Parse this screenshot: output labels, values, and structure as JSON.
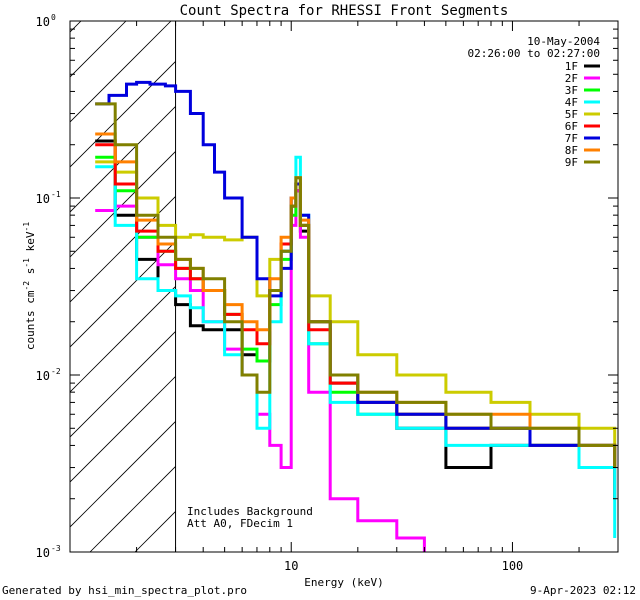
{
  "chart_data": {
    "type": "line",
    "title": "Count Spectra for RHESSI Front Segments",
    "xlabel": "Energy (keV)",
    "ylabel_parts": [
      "counts cm",
      "-2",
      " s",
      "-1",
      " keV",
      "-1"
    ],
    "xscale": "log",
    "yscale": "log",
    "xlim": [
      1.0,
      300.0
    ],
    "ylim": [
      0.001,
      1.0
    ],
    "x_ticks": [
      {
        "value": 10,
        "label": "10"
      },
      {
        "value": 100,
        "label": "100"
      }
    ],
    "y_ticks": [
      {
        "value": 1.0,
        "label": "10",
        "exp": "0"
      },
      {
        "value": 0.1,
        "label": "10",
        "exp": "-1"
      },
      {
        "value": 0.01,
        "label": "10",
        "exp": "-2"
      },
      {
        "value": 0.001,
        "label": "10",
        "exp": "-3"
      }
    ],
    "date": "10-May-2004",
    "time_range": "02:26:00 to 02:27:00",
    "annotation_lines": [
      "Includes Background",
      "Att A0, FDecim 1"
    ],
    "shaded_region": [
      1.0,
      3.0
    ],
    "legend_location": "top-right",
    "series": [
      {
        "name": "1F",
        "color": "#000000",
        "points": [
          [
            1.3,
            0.21
          ],
          [
            1.6,
            0.08
          ],
          [
            2.0,
            0.045
          ],
          [
            2.5,
            0.03
          ],
          [
            3.0,
            0.025
          ],
          [
            3.5,
            0.019
          ],
          [
            4.0,
            0.018
          ],
          [
            5.0,
            0.018
          ],
          [
            6.0,
            0.013
          ],
          [
            7.0,
            0.012
          ],
          [
            8.0,
            0.03
          ],
          [
            9.0,
            0.05
          ],
          [
            10.0,
            0.09
          ],
          [
            10.5,
            0.11
          ],
          [
            11.0,
            0.065
          ],
          [
            12.0,
            0.02
          ],
          [
            15.0,
            0.009
          ],
          [
            20.0,
            0.007
          ],
          [
            30.0,
            0.005
          ],
          [
            50.0,
            0.003
          ],
          [
            80.0,
            0.004
          ],
          [
            120.0,
            0.004
          ],
          [
            200.0,
            0.003
          ],
          [
            290.0,
            0.002
          ]
        ]
      },
      {
        "name": "2F",
        "color": "#ff00ff",
        "points": [
          [
            1.3,
            0.085
          ],
          [
            1.6,
            0.09
          ],
          [
            2.0,
            0.06
          ],
          [
            2.5,
            0.042
          ],
          [
            3.0,
            0.035
          ],
          [
            3.5,
            0.03
          ],
          [
            4.0,
            0.02
          ],
          [
            5.0,
            0.014
          ],
          [
            6.0,
            0.01
          ],
          [
            7.0,
            0.006
          ],
          [
            8.0,
            0.004
          ],
          [
            9.0,
            0.003
          ],
          [
            10.0,
            0.07
          ],
          [
            10.5,
            0.11
          ],
          [
            11.0,
            0.06
          ],
          [
            12.0,
            0.008
          ],
          [
            15.0,
            0.002
          ],
          [
            20.0,
            0.0015
          ],
          [
            30.0,
            0.0012
          ],
          [
            40.0,
            0.001
          ]
        ]
      },
      {
        "name": "3F",
        "color": "#00ff00",
        "points": [
          [
            1.3,
            0.17
          ],
          [
            1.6,
            0.11
          ],
          [
            2.0,
            0.06
          ],
          [
            2.5,
            0.05
          ],
          [
            3.0,
            0.04
          ],
          [
            3.5,
            0.035
          ],
          [
            4.0,
            0.03
          ],
          [
            5.0,
            0.022
          ],
          [
            6.0,
            0.014
          ],
          [
            7.0,
            0.012
          ],
          [
            8.0,
            0.025
          ],
          [
            9.0,
            0.045
          ],
          [
            10.0,
            0.08
          ],
          [
            10.5,
            0.12
          ],
          [
            11.0,
            0.07
          ],
          [
            12.0,
            0.015
          ],
          [
            15.0,
            0.008
          ],
          [
            20.0,
            0.006
          ],
          [
            30.0,
            0.006
          ],
          [
            50.0,
            0.005
          ],
          [
            80.0,
            0.005
          ],
          [
            120.0,
            0.004
          ],
          [
            200.0,
            0.004
          ],
          [
            290.0,
            0.003
          ]
        ]
      },
      {
        "name": "4F",
        "color": "#00ffff",
        "points": [
          [
            1.3,
            0.15
          ],
          [
            1.6,
            0.07
          ],
          [
            2.0,
            0.035
          ],
          [
            2.5,
            0.03
          ],
          [
            3.0,
            0.028
          ],
          [
            3.5,
            0.024
          ],
          [
            4.0,
            0.02
          ],
          [
            5.0,
            0.013
          ],
          [
            6.0,
            0.01
          ],
          [
            7.0,
            0.005
          ],
          [
            8.0,
            0.02
          ],
          [
            9.0,
            0.05
          ],
          [
            10.0,
            0.09
          ],
          [
            10.5,
            0.17
          ],
          [
            11.0,
            0.08
          ],
          [
            12.0,
            0.015
          ],
          [
            15.0,
            0.007
          ],
          [
            20.0,
            0.006
          ],
          [
            30.0,
            0.005
          ],
          [
            50.0,
            0.004
          ],
          [
            80.0,
            0.004
          ],
          [
            120.0,
            0.004
          ],
          [
            200.0,
            0.003
          ],
          [
            290.0,
            0.0012
          ]
        ]
      },
      {
        "name": "5F",
        "color": "#cccc00",
        "points": [
          [
            1.3,
            0.16
          ],
          [
            1.6,
            0.14
          ],
          [
            2.0,
            0.1
          ],
          [
            2.5,
            0.07
          ],
          [
            3.0,
            0.06
          ],
          [
            3.5,
            0.062
          ],
          [
            4.0,
            0.06
          ],
          [
            5.0,
            0.058
          ],
          [
            6.0,
            0.06
          ],
          [
            7.0,
            0.028
          ],
          [
            8.0,
            0.045
          ],
          [
            9.0,
            0.055
          ],
          [
            10.0,
            0.1
          ],
          [
            10.5,
            0.12
          ],
          [
            11.0,
            0.07
          ],
          [
            12.0,
            0.028
          ],
          [
            15.0,
            0.02
          ],
          [
            20.0,
            0.013
          ],
          [
            30.0,
            0.01
          ],
          [
            50.0,
            0.008
          ],
          [
            80.0,
            0.007
          ],
          [
            120.0,
            0.006
          ],
          [
            200.0,
            0.005
          ],
          [
            290.0,
            0.004
          ]
        ]
      },
      {
        "name": "6F",
        "color": "#ff0000",
        "points": [
          [
            1.3,
            0.2
          ],
          [
            1.6,
            0.12
          ],
          [
            2.0,
            0.065
          ],
          [
            2.5,
            0.05
          ],
          [
            3.0,
            0.04
          ],
          [
            3.5,
            0.035
          ],
          [
            4.0,
            0.03
          ],
          [
            5.0,
            0.022
          ],
          [
            6.0,
            0.018
          ],
          [
            7.0,
            0.015
          ],
          [
            8.0,
            0.03
          ],
          [
            9.0,
            0.055
          ],
          [
            10.0,
            0.09
          ],
          [
            10.5,
            0.12
          ],
          [
            11.0,
            0.07
          ],
          [
            12.0,
            0.018
          ],
          [
            15.0,
            0.009
          ],
          [
            20.0,
            0.007
          ],
          [
            30.0,
            0.006
          ],
          [
            50.0,
            0.005
          ],
          [
            80.0,
            0.005
          ],
          [
            120.0,
            0.004
          ],
          [
            200.0,
            0.004
          ],
          [
            290.0,
            0.003
          ]
        ]
      },
      {
        "name": "7F",
        "color": "#0000dd",
        "points": [
          [
            1.3,
            0.34
          ],
          [
            1.5,
            0.38
          ],
          [
            1.8,
            0.44
          ],
          [
            2.0,
            0.45
          ],
          [
            2.3,
            0.44
          ],
          [
            2.7,
            0.43
          ],
          [
            3.0,
            0.4
          ],
          [
            3.5,
            0.3
          ],
          [
            4.0,
            0.2
          ],
          [
            4.5,
            0.14
          ],
          [
            5.0,
            0.1
          ],
          [
            6.0,
            0.06
          ],
          [
            7.0,
            0.035
          ],
          [
            8.0,
            0.028
          ],
          [
            9.0,
            0.04
          ],
          [
            10.0,
            0.1
          ],
          [
            10.5,
            0.12
          ],
          [
            11.0,
            0.08
          ],
          [
            12.0,
            0.02
          ],
          [
            15.0,
            0.01
          ],
          [
            20.0,
            0.007
          ],
          [
            30.0,
            0.006
          ],
          [
            50.0,
            0.005
          ],
          [
            80.0,
            0.005
          ],
          [
            120.0,
            0.004
          ],
          [
            200.0,
            0.004
          ],
          [
            290.0,
            0.003
          ]
        ]
      },
      {
        "name": "8F",
        "color": "#ff8000",
        "points": [
          [
            1.3,
            0.23
          ],
          [
            1.6,
            0.16
          ],
          [
            2.0,
            0.075
          ],
          [
            2.5,
            0.055
          ],
          [
            3.0,
            0.045
          ],
          [
            3.5,
            0.04
          ],
          [
            4.0,
            0.03
          ],
          [
            5.0,
            0.025
          ],
          [
            6.0,
            0.02
          ],
          [
            7.0,
            0.018
          ],
          [
            8.0,
            0.035
          ],
          [
            9.0,
            0.06
          ],
          [
            10.0,
            0.1
          ],
          [
            10.5,
            0.13
          ],
          [
            11.0,
            0.075
          ],
          [
            12.0,
            0.02
          ],
          [
            15.0,
            0.01
          ],
          [
            20.0,
            0.008
          ],
          [
            30.0,
            0.007
          ],
          [
            50.0,
            0.006
          ],
          [
            80.0,
            0.006
          ],
          [
            120.0,
            0.005
          ],
          [
            200.0,
            0.004
          ],
          [
            290.0,
            0.003
          ]
        ]
      },
      {
        "name": "9F",
        "color": "#808000",
        "points": [
          [
            1.3,
            0.34
          ],
          [
            1.6,
            0.2
          ],
          [
            2.0,
            0.08
          ],
          [
            2.5,
            0.06
          ],
          [
            3.0,
            0.045
          ],
          [
            3.5,
            0.04
          ],
          [
            4.0,
            0.035
          ],
          [
            5.0,
            0.02
          ],
          [
            6.0,
            0.01
          ],
          [
            7.0,
            0.008
          ],
          [
            8.0,
            0.03
          ],
          [
            9.0,
            0.05
          ],
          [
            10.0,
            0.09
          ],
          [
            10.5,
            0.13
          ],
          [
            11.0,
            0.07
          ],
          [
            12.0,
            0.02
          ],
          [
            15.0,
            0.01
          ],
          [
            20.0,
            0.008
          ],
          [
            30.0,
            0.007
          ],
          [
            50.0,
            0.006
          ],
          [
            80.0,
            0.005
          ],
          [
            120.0,
            0.005
          ],
          [
            200.0,
            0.004
          ],
          [
            290.0,
            0.003
          ]
        ]
      }
    ]
  },
  "footer": {
    "left": "Generated by hsi_min_spectra_plot.pro",
    "right": "9-Apr-2023 02:12"
  }
}
